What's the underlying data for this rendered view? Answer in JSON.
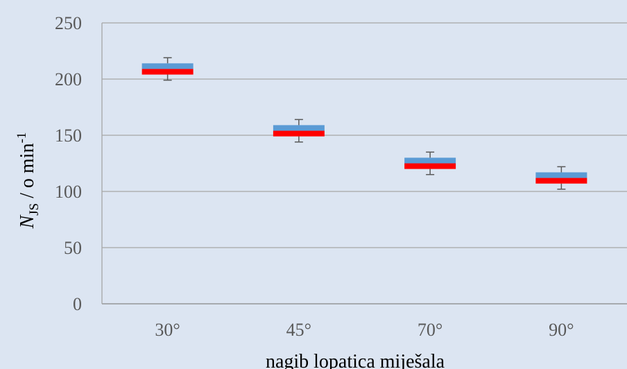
{
  "chart_data": {
    "type": "box",
    "xlabel": "nagib lopatica miješala",
    "ylabel": {
      "symbol": "N",
      "subscript": "JS",
      "unit": " / o min",
      "superscript": "-1"
    },
    "ylim": [
      0,
      250
    ],
    "yticks": [
      0,
      50,
      100,
      150,
      200,
      250
    ],
    "grid": true,
    "categories": [
      "30°",
      "45°",
      "70°",
      "90°"
    ],
    "boxes": [
      {
        "category": "30°",
        "min": 199,
        "lower": 204,
        "median": 209,
        "upper": 214,
        "max": 219
      },
      {
        "category": "45°",
        "min": 144,
        "lower": 149,
        "median": 154,
        "upper": 159,
        "max": 164
      },
      {
        "category": "70°",
        "min": 115,
        "lower": 120,
        "median": 125,
        "upper": 130,
        "max": 135
      },
      {
        "category": "90°",
        "min": 102,
        "lower": 107,
        "median": 112,
        "upper": 117,
        "max": 122
      }
    ],
    "colors": {
      "upper_box": "#5b9bd5",
      "lower_box": "#ff0000",
      "whisker": "#595959",
      "grid": "#a6a6a6",
      "background": "#dce5f2"
    }
  }
}
